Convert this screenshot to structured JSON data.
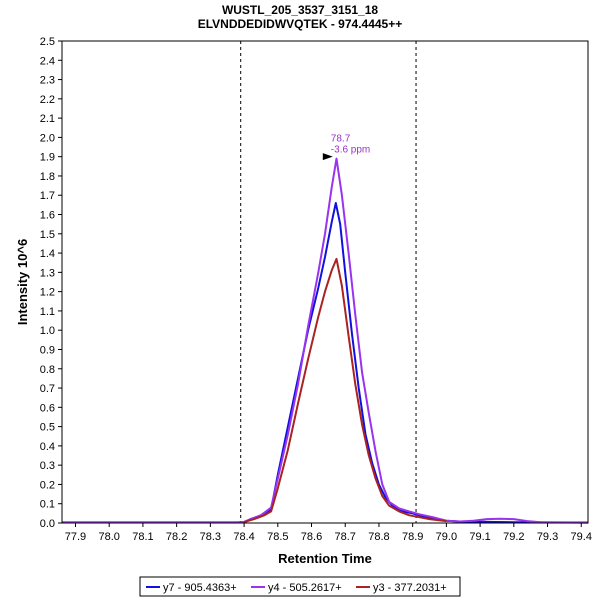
{
  "chart_data": {
    "type": "line",
    "title": "WUSTL_205_3537_3151_18",
    "subtitle": "ELVNDDEDIDWVQTEK - 974.4445++",
    "xlabel": "Retention Time",
    "ylabel": "Intensity 10^6",
    "xlim": [
      77.86,
      79.42
    ],
    "ylim": [
      0,
      2.5
    ],
    "x_ticks": [
      "77.9",
      "78.0",
      "78.1",
      "78.2",
      "78.3",
      "78.4",
      "78.5",
      "78.6",
      "78.7",
      "78.8",
      "78.9",
      "79.0",
      "79.1",
      "79.2",
      "79.3",
      "79.4"
    ],
    "y_ticks": [
      "0.0",
      "0.1",
      "0.2",
      "0.3",
      "0.4",
      "0.5",
      "0.6",
      "0.7",
      "0.8",
      "0.9",
      "1.0",
      "1.1",
      "1.2",
      "1.3",
      "1.4",
      "1.5",
      "1.6",
      "1.7",
      "1.8",
      "1.9",
      "2.0",
      "2.1",
      "2.2",
      "2.3",
      "2.4",
      "2.5"
    ],
    "grid": false,
    "legend_position": "bottom",
    "integration_bounds": [
      78.39,
      78.91
    ],
    "annotation": {
      "x": 78.675,
      "y": 1.9,
      "lines": [
        "78.7",
        "-3.6 ppm"
      ],
      "color": "#9933cc"
    },
    "series": [
      {
        "name": "y7 - 905.4363+",
        "color": "#1111dd",
        "points": [
          [
            77.86,
            0.003
          ],
          [
            78.38,
            0.003
          ],
          [
            78.4,
            0.005
          ],
          [
            78.42,
            0.02
          ],
          [
            78.45,
            0.04
          ],
          [
            78.48,
            0.07
          ],
          [
            78.5,
            0.25
          ],
          [
            78.53,
            0.5
          ],
          [
            78.56,
            0.75
          ],
          [
            78.59,
            1.0
          ],
          [
            78.62,
            1.22
          ],
          [
            78.64,
            1.38
          ],
          [
            78.66,
            1.56
          ],
          [
            78.672,
            1.66
          ],
          [
            78.685,
            1.55
          ],
          [
            78.7,
            1.3
          ],
          [
            78.72,
            0.98
          ],
          [
            78.74,
            0.7
          ],
          [
            78.76,
            0.46
          ],
          [
            78.78,
            0.31
          ],
          [
            78.8,
            0.2
          ],
          [
            78.82,
            0.13
          ],
          [
            78.84,
            0.09
          ],
          [
            78.87,
            0.06
          ],
          [
            78.9,
            0.05
          ],
          [
            78.93,
            0.035
          ],
          [
            78.97,
            0.02
          ],
          [
            79.0,
            0.012
          ],
          [
            79.05,
            0.007
          ],
          [
            79.1,
            0.006
          ],
          [
            79.15,
            0.005
          ],
          [
            79.2,
            0.004
          ],
          [
            79.3,
            0.003
          ],
          [
            79.42,
            0.002
          ]
        ]
      },
      {
        "name": "y4 - 505.2617+",
        "color": "#9933ee",
        "points": [
          [
            77.86,
            0.003
          ],
          [
            78.38,
            0.003
          ],
          [
            78.4,
            0.005
          ],
          [
            78.42,
            0.02
          ],
          [
            78.45,
            0.04
          ],
          [
            78.48,
            0.08
          ],
          [
            78.5,
            0.23
          ],
          [
            78.53,
            0.46
          ],
          [
            78.56,
            0.72
          ],
          [
            78.59,
            1.02
          ],
          [
            78.62,
            1.3
          ],
          [
            78.64,
            1.5
          ],
          [
            78.66,
            1.74
          ],
          [
            78.674,
            1.89
          ],
          [
            78.69,
            1.7
          ],
          [
            78.71,
            1.4
          ],
          [
            78.73,
            1.08
          ],
          [
            78.75,
            0.78
          ],
          [
            78.77,
            0.57
          ],
          [
            78.79,
            0.37
          ],
          [
            78.81,
            0.2
          ],
          [
            78.83,
            0.11
          ],
          [
            78.86,
            0.075
          ],
          [
            78.89,
            0.06
          ],
          [
            78.92,
            0.045
          ],
          [
            78.96,
            0.03
          ],
          [
            79.0,
            0.012
          ],
          [
            79.04,
            0.008
          ],
          [
            79.08,
            0.012
          ],
          [
            79.12,
            0.02
          ],
          [
            79.16,
            0.022
          ],
          [
            79.2,
            0.02
          ],
          [
            79.24,
            0.01
          ],
          [
            79.28,
            0.004
          ],
          [
            79.35,
            0.003
          ],
          [
            79.42,
            0.003
          ]
        ]
      },
      {
        "name": "y3 - 377.2031+",
        "color": "#aa2222",
        "points": [
          [
            78.4,
            0.005
          ],
          [
            78.43,
            0.02
          ],
          [
            78.46,
            0.04
          ],
          [
            78.48,
            0.06
          ],
          [
            78.5,
            0.18
          ],
          [
            78.53,
            0.38
          ],
          [
            78.56,
            0.62
          ],
          [
            78.59,
            0.85
          ],
          [
            78.62,
            1.07
          ],
          [
            78.64,
            1.2
          ],
          [
            78.66,
            1.31
          ],
          [
            78.674,
            1.37
          ],
          [
            78.69,
            1.23
          ],
          [
            78.71,
            0.97
          ],
          [
            78.73,
            0.72
          ],
          [
            78.75,
            0.51
          ],
          [
            78.77,
            0.35
          ],
          [
            78.79,
            0.23
          ],
          [
            78.81,
            0.14
          ],
          [
            78.83,
            0.09
          ],
          [
            78.86,
            0.06
          ],
          [
            78.89,
            0.04
          ],
          [
            78.92,
            0.03
          ],
          [
            78.95,
            0.02
          ],
          [
            79.0,
            0.01
          ]
        ]
      }
    ]
  }
}
